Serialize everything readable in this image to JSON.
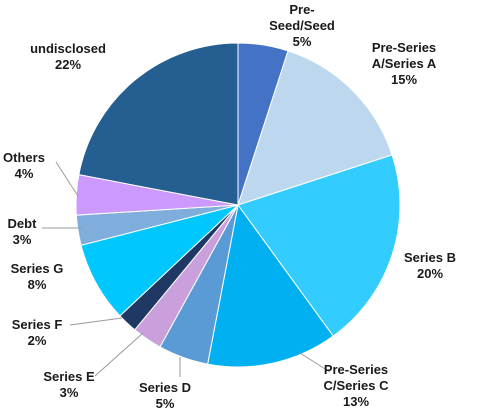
{
  "chart_data": {
    "type": "pie",
    "title": "",
    "slices": [
      {
        "label": "Pre-Seed/Seed",
        "lines": [
          "Pre-",
          "Seed/Seed"
        ],
        "value": 5,
        "value_text": "5%",
        "color": "#4472c4"
      },
      {
        "label": "Pre-Series A/Series A",
        "lines": [
          "Pre-Series",
          "A/Series A"
        ],
        "value": 15,
        "value_text": "15%",
        "color": "#bdd7ee"
      },
      {
        "label": "Series B",
        "lines": [
          "Series B"
        ],
        "value": 20,
        "value_text": "20%",
        "color": "#33ccff"
      },
      {
        "label": "Pre-Series C/Series C",
        "lines": [
          "Pre-Series",
          "C/Series C"
        ],
        "value": 13,
        "value_text": "13%",
        "color": "#00b0f0"
      },
      {
        "label": "Series D",
        "lines": [
          "Series D"
        ],
        "value": 5,
        "value_text": "5%",
        "color": "#5b9bd5"
      },
      {
        "label": "Series E",
        "lines": [
          "Series E"
        ],
        "value": 3,
        "value_text": "3%",
        "color": "#c9a0dc"
      },
      {
        "label": "Series F",
        "lines": [
          "Series F"
        ],
        "value": 2,
        "value_text": "2%",
        "color": "#203864"
      },
      {
        "label": "Series G",
        "lines": [
          "Series G"
        ],
        "value": 8,
        "value_text": "8%",
        "color": "#00c8ff"
      },
      {
        "label": "Debt",
        "lines": [
          "Debt"
        ],
        "value": 3,
        "value_text": "3%",
        "color": "#7faedc"
      },
      {
        "label": "Others",
        "lines": [
          "Others"
        ],
        "value": 4,
        "value_text": "4%",
        "color": "#cc99ff"
      },
      {
        "label": "undisclosed",
        "lines": [
          "undisclosed"
        ],
        "value": 22,
        "value_text": "22%",
        "color": "#255e91"
      }
    ]
  }
}
